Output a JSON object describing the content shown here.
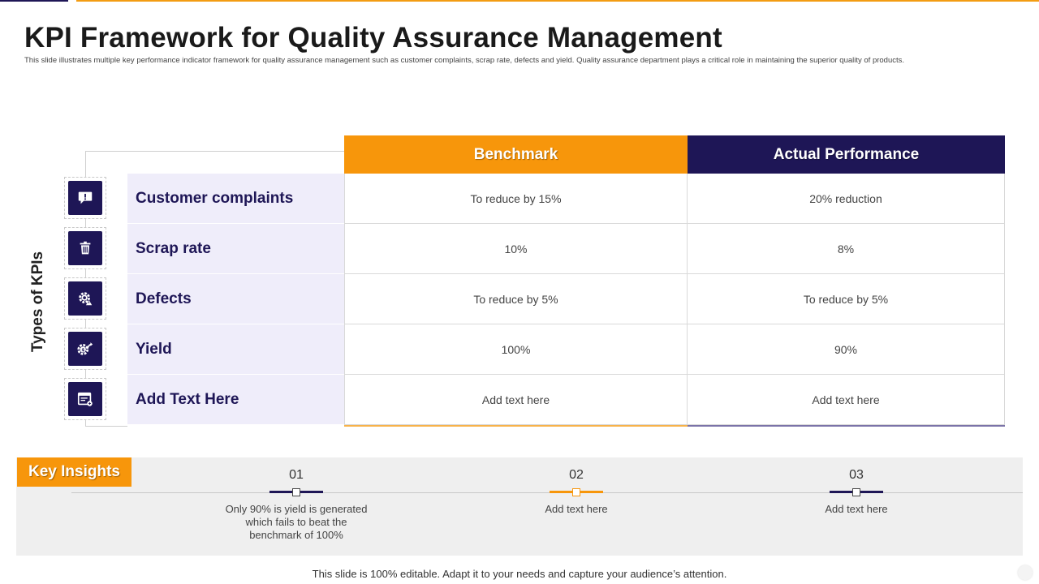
{
  "title": "KPI Framework for Quality Assurance Management",
  "subtitle": "This slide illustrates multiple  key performance indicator framework for quality assurance management such as customer complaints, scrap rate, defects and yield. Quality assurance department plays a critical role in maintaining  the superior quality of products.",
  "side_label": "Types of KPIs",
  "colors": {
    "accent_orange": "#f7960b",
    "accent_navy": "#1e1656",
    "kpi_cell_bg": "#efedfa"
  },
  "table": {
    "headers": {
      "benchmark": "Benchmark",
      "actual": "Actual Performance"
    },
    "rows": [
      {
        "icon": "complaint-bubble-icon",
        "kpi": "Customer complaints",
        "benchmark": "To reduce by 15%",
        "actual": "20% reduction"
      },
      {
        "icon": "trash-bin-icon",
        "kpi": "Scrap rate",
        "benchmark": "10%",
        "actual": "8%"
      },
      {
        "icon": "gear-warning-icon",
        "kpi": "Defects",
        "benchmark": "To reduce by 5%",
        "actual": "To reduce by 5%"
      },
      {
        "icon": "gear-dollar-icon",
        "kpi": "Yield",
        "benchmark": "100%",
        "actual": "90%"
      },
      {
        "icon": "browser-window-icon",
        "kpi": "Add Text Here",
        "benchmark": "Add text here",
        "actual": "Add text here"
      }
    ]
  },
  "insights": {
    "tag": "Key Insights",
    "steps": [
      {
        "num": "01",
        "text": "Only 90% is yield is generated which fails to beat the benchmark of 100%",
        "color": "#1e1656"
      },
      {
        "num": "02",
        "text": "Add text here",
        "color": "#f7960b"
      },
      {
        "num": "03",
        "text": "Add text here",
        "color": "#1e1656"
      }
    ]
  },
  "footer": "This slide is 100% editable. Adapt it to your needs and capture your audience’s attention."
}
